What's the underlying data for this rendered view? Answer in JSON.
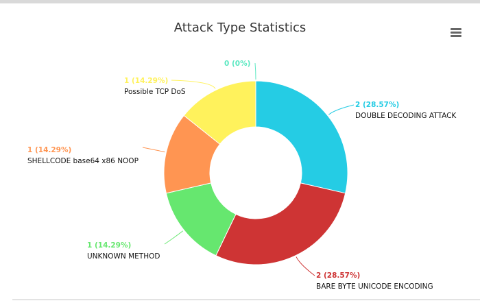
{
  "chart_data": {
    "type": "pie",
    "variant": "donut",
    "title": "Attack Type Statistics",
    "slices": [
      {
        "name": "DOUBLE DECODING ATTACK",
        "value": 2,
        "label": "2 (28.57%)",
        "color": "#25CCE4"
      },
      {
        "name": "BARE BYTE UNICODE ENCODING",
        "value": 2,
        "label": "2 (28.57%)",
        "color": "#CE3434"
      },
      {
        "name": "UNKNOWN METHOD",
        "value": 1,
        "label": "1 (14.29%)",
        "color": "#66E76F"
      },
      {
        "name": "SHELLCODE base64 x86 NOOP",
        "value": 1,
        "label": "1 (14.29%)",
        "color": "#FF9552"
      },
      {
        "name": "Possible TCP DoS",
        "value": 1,
        "label": "1 (14.29%)",
        "color": "#FFF25C"
      },
      {
        "name": "",
        "value": 0,
        "label": "0 (0%)",
        "color": "#5CE8C2"
      }
    ]
  },
  "menu_icon": "hamburger-menu-icon",
  "colors": {
    "title": "#333333",
    "menu": "#666666",
    "name_text": "#111111"
  }
}
